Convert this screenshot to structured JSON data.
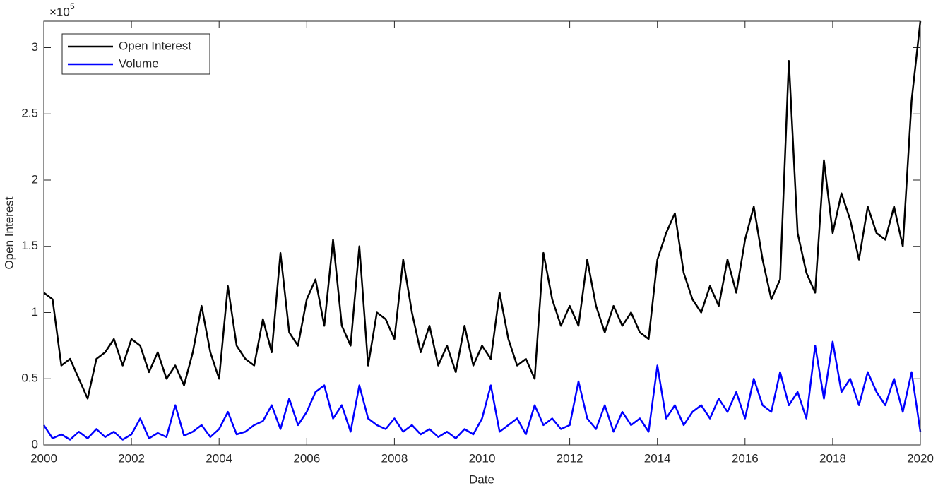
{
  "chart_data": {
    "type": "line",
    "x_label": "Date",
    "y_label": "Open Interest",
    "y_multiplier": "×10",
    "y_multiplier_exponent": "5",
    "x": [
      2000,
      2000.2,
      2000.4,
      2000.6,
      2000.8,
      2001,
      2001.2,
      2001.4,
      2001.6,
      2001.8,
      2002,
      2002.2,
      2002.4,
      2002.6,
      2002.8,
      2003,
      2003.2,
      2003.4,
      2003.6,
      2003.8,
      2004,
      2004.2,
      2004.4,
      2004.6,
      2004.8,
      2005,
      2005.2,
      2005.4,
      2005.6,
      2005.8,
      2006,
      2006.2,
      2006.4,
      2006.6,
      2006.8,
      2007,
      2007.2,
      2007.4,
      2007.6,
      2007.8,
      2008,
      2008.2,
      2008.4,
      2008.6,
      2008.8,
      2009,
      2009.2,
      2009.4,
      2009.6,
      2009.8,
      2010,
      2010.2,
      2010.4,
      2010.6,
      2010.8,
      2011,
      2011.2,
      2011.4,
      2011.6,
      2011.8,
      2012,
      2012.2,
      2012.4,
      2012.6,
      2012.8,
      2013,
      2013.2,
      2013.4,
      2013.6,
      2013.8,
      2014,
      2014.2,
      2014.4,
      2014.6,
      2014.8,
      2015,
      2015.2,
      2015.4,
      2015.6,
      2015.8,
      2016,
      2016.2,
      2016.4,
      2016.6,
      2016.8,
      2017,
      2017.2,
      2017.4,
      2017.6,
      2017.8,
      2018,
      2018.2,
      2018.4,
      2018.6,
      2018.8,
      2019,
      2019.2,
      2019.4,
      2019.6,
      2019.8,
      2020
    ],
    "series": [
      {
        "name": "Open Interest",
        "color": "#000000",
        "values": [
          1.15,
          1.1,
          0.6,
          0.65,
          0.5,
          0.35,
          0.65,
          0.7,
          0.8,
          0.6,
          0.8,
          0.75,
          0.55,
          0.7,
          0.5,
          0.6,
          0.45,
          0.7,
          1.05,
          0.7,
          0.5,
          1.2,
          0.75,
          0.65,
          0.6,
          0.95,
          0.7,
          1.45,
          0.85,
          0.75,
          1.1,
          1.25,
          0.9,
          1.55,
          0.9,
          0.75,
          1.5,
          0.6,
          1.0,
          0.95,
          0.8,
          1.4,
          1.0,
          0.7,
          0.9,
          0.6,
          0.75,
          0.55,
          0.9,
          0.6,
          0.75,
          0.65,
          1.15,
          0.8,
          0.6,
          0.65,
          0.5,
          1.45,
          1.1,
          0.9,
          1.05,
          0.9,
          1.4,
          1.05,
          0.85,
          1.05,
          0.9,
          1.0,
          0.85,
          0.8,
          1.4,
          1.6,
          1.75,
          1.3,
          1.1,
          1.0,
          1.2,
          1.05,
          1.4,
          1.15,
          1.55,
          1.8,
          1.4,
          1.1,
          1.25,
          2.9,
          1.6,
          1.3,
          1.15,
          2.15,
          1.6,
          1.9,
          1.7,
          1.4,
          1.8,
          1.6,
          1.55,
          1.8,
          1.5,
          2.6,
          3.2
        ]
      },
      {
        "name": "Volume",
        "color": "#0000ff",
        "values": [
          0.15,
          0.05,
          0.08,
          0.04,
          0.1,
          0.05,
          0.12,
          0.06,
          0.1,
          0.04,
          0.08,
          0.2,
          0.05,
          0.09,
          0.06,
          0.3,
          0.07,
          0.1,
          0.15,
          0.06,
          0.12,
          0.25,
          0.08,
          0.1,
          0.15,
          0.18,
          0.3,
          0.12,
          0.35,
          0.15,
          0.25,
          0.4,
          0.45,
          0.2,
          0.3,
          0.1,
          0.45,
          0.2,
          0.15,
          0.12,
          0.2,
          0.1,
          0.15,
          0.08,
          0.12,
          0.06,
          0.1,
          0.05,
          0.12,
          0.08,
          0.2,
          0.45,
          0.1,
          0.15,
          0.2,
          0.08,
          0.3,
          0.15,
          0.2,
          0.12,
          0.15,
          0.48,
          0.2,
          0.12,
          0.3,
          0.1,
          0.25,
          0.15,
          0.2,
          0.1,
          0.6,
          0.2,
          0.3,
          0.15,
          0.25,
          0.3,
          0.2,
          0.35,
          0.25,
          0.4,
          0.2,
          0.5,
          0.3,
          0.25,
          0.55,
          0.3,
          0.4,
          0.2,
          0.75,
          0.35,
          0.78,
          0.4,
          0.5,
          0.3,
          0.55,
          0.4,
          0.3,
          0.5,
          0.25,
          0.55,
          0.1
        ]
      }
    ],
    "xlim": [
      2000,
      2020
    ],
    "xticks": [
      2000,
      2002,
      2004,
      2006,
      2008,
      2010,
      2012,
      2014,
      2016,
      2018,
      2020
    ],
    "ylim": [
      0,
      3.2
    ],
    "yticks": [
      0,
      0.5,
      1,
      1.5,
      2,
      2.5,
      3
    ],
    "legend": "upper-left"
  }
}
